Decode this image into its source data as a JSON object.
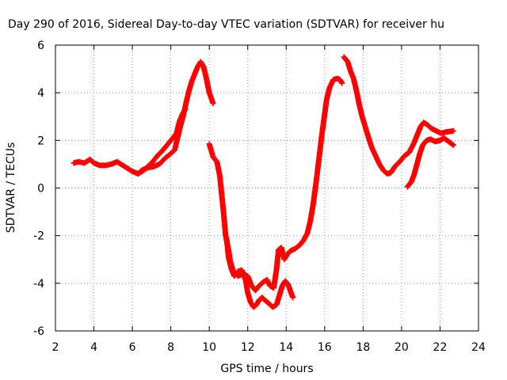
{
  "chart_data": {
    "type": "scatter",
    "title": "Day 290 of 2016, Sidereal Day-to-day VTEC variation (SDTVAR) for receiver hu",
    "xlabel": "GPS time / hours",
    "ylabel": "SDTVAR / TECUs",
    "xlim": [
      2,
      24
    ],
    "ylim": [
      -6,
      6
    ],
    "xticks": [
      "2",
      "4",
      "6",
      "8",
      "10",
      "12",
      "14",
      "16",
      "18",
      "20",
      "22",
      "24"
    ],
    "yticks": [
      "-6",
      "-4",
      "-2",
      "0",
      "2",
      "4",
      "6"
    ],
    "grid": true,
    "legend": "none",
    "marker": "plus",
    "color": "#ff0000",
    "series": [
      {
        "points": [
          [
            2.95,
            1.05
          ],
          [
            3.2,
            1.1
          ],
          [
            3.5,
            1.05
          ],
          [
            3.8,
            1.2
          ],
          [
            4.0,
            1.05
          ],
          [
            4.3,
            0.95
          ],
          [
            4.6,
            0.95
          ],
          [
            4.9,
            1.0
          ],
          [
            5.2,
            1.1
          ],
          [
            5.5,
            0.95
          ],
          [
            5.8,
            0.8
          ],
          [
            6.0,
            0.7
          ],
          [
            6.3,
            0.6
          ],
          [
            6.5,
            0.75
          ],
          [
            6.8,
            0.85
          ],
          [
            7.1,
            0.9
          ],
          [
            7.4,
            1.0
          ],
          [
            7.7,
            1.25
          ],
          [
            8.0,
            1.45
          ],
          [
            8.2,
            1.6
          ],
          [
            8.35,
            2.1
          ],
          [
            8.5,
            2.6
          ],
          [
            8.65,
            3.05
          ],
          [
            8.8,
            3.6
          ],
          [
            8.95,
            4.1
          ],
          [
            9.1,
            4.5
          ],
          [
            9.25,
            4.8
          ],
          [
            9.4,
            5.1
          ],
          [
            9.55,
            5.3
          ],
          [
            9.7,
            5.1
          ],
          [
            9.85,
            4.6
          ],
          [
            10.0,
            4.0
          ],
          [
            10.2,
            3.55
          ]
        ]
      },
      {
        "points": [
          [
            6.3,
            0.6
          ],
          [
            6.6,
            0.75
          ],
          [
            7.0,
            1.05
          ],
          [
            7.3,
            1.35
          ],
          [
            7.6,
            1.6
          ],
          [
            7.9,
            1.9
          ],
          [
            8.1,
            2.1
          ],
          [
            8.3,
            2.3
          ],
          [
            8.45,
            2.8
          ],
          [
            8.6,
            3.1
          ],
          [
            8.75,
            3.3
          ]
        ]
      },
      {
        "points": [
          [
            10.0,
            1.85
          ],
          [
            10.2,
            1.3
          ],
          [
            10.4,
            1.1
          ],
          [
            10.55,
            0.5
          ],
          [
            10.65,
            -0.3
          ],
          [
            10.75,
            -1.1
          ],
          [
            10.85,
            -2.0
          ],
          [
            11.0,
            -2.6
          ],
          [
            11.1,
            -3.1
          ],
          [
            11.25,
            -3.5
          ],
          [
            11.5,
            -3.7
          ],
          [
            11.75,
            -3.6
          ],
          [
            12.0,
            -3.7
          ],
          [
            12.2,
            -4.1
          ],
          [
            12.4,
            -4.3
          ],
          [
            12.6,
            -4.1
          ],
          [
            12.8,
            -3.95
          ],
          [
            13.0,
            -3.85
          ],
          [
            13.15,
            -4.1
          ],
          [
            13.35,
            -4.2
          ],
          [
            13.5,
            -3.4
          ],
          [
            13.6,
            -2.6
          ],
          [
            13.75,
            -2.5
          ],
          [
            13.9,
            -3.0
          ],
          [
            14.05,
            -2.8
          ],
          [
            14.2,
            -2.65
          ],
          [
            14.45,
            -2.55
          ],
          [
            14.7,
            -2.4
          ],
          [
            14.9,
            -2.2
          ],
          [
            15.1,
            -1.9
          ],
          [
            15.25,
            -1.4
          ],
          [
            15.4,
            -0.7
          ],
          [
            15.55,
            0.2
          ],
          [
            15.7,
            1.2
          ],
          [
            15.85,
            2.2
          ],
          [
            16.0,
            3.1
          ],
          [
            16.1,
            3.7
          ],
          [
            16.25,
            4.2
          ],
          [
            16.45,
            4.55
          ],
          [
            16.65,
            4.6
          ],
          [
            16.8,
            4.55
          ],
          [
            16.9,
            4.4
          ]
        ]
      },
      {
        "points": [
          [
            10.9,
            -2.1
          ],
          [
            11.0,
            -2.9
          ],
          [
            11.15,
            -3.4
          ],
          [
            11.3,
            -3.7
          ],
          [
            11.5,
            -3.5
          ],
          [
            11.7,
            -3.45
          ],
          [
            11.9,
            -3.9
          ],
          [
            12.0,
            -4.4
          ],
          [
            12.15,
            -4.8
          ],
          [
            12.3,
            -5.0
          ],
          [
            12.45,
            -4.9
          ],
          [
            12.6,
            -4.7
          ],
          [
            12.75,
            -4.6
          ],
          [
            12.95,
            -4.75
          ],
          [
            13.1,
            -4.85
          ],
          [
            13.3,
            -5.0
          ],
          [
            13.5,
            -4.9
          ],
          [
            13.65,
            -4.5
          ],
          [
            13.8,
            -4.1
          ],
          [
            13.95,
            -3.9
          ],
          [
            14.1,
            -4.05
          ],
          [
            14.25,
            -4.4
          ],
          [
            14.35,
            -4.6
          ]
        ]
      },
      {
        "points": [
          [
            17.0,
            5.5
          ],
          [
            17.2,
            5.3
          ],
          [
            17.35,
            4.9
          ],
          [
            17.5,
            4.6
          ],
          [
            17.65,
            4.1
          ],
          [
            17.8,
            3.5
          ],
          [
            17.95,
            3.0
          ],
          [
            18.1,
            2.6
          ],
          [
            18.25,
            2.2
          ],
          [
            18.45,
            1.7
          ],
          [
            18.65,
            1.35
          ],
          [
            18.85,
            1.0
          ],
          [
            19.05,
            0.75
          ],
          [
            19.25,
            0.6
          ],
          [
            19.45,
            0.65
          ],
          [
            19.65,
            0.9
          ],
          [
            19.9,
            1.1
          ],
          [
            20.15,
            1.35
          ],
          [
            20.4,
            1.5
          ],
          [
            20.65,
            1.9
          ],
          [
            20.85,
            2.3
          ],
          [
            21.0,
            2.6
          ],
          [
            21.15,
            2.75
          ],
          [
            21.35,
            2.65
          ],
          [
            21.55,
            2.5
          ],
          [
            21.8,
            2.4
          ],
          [
            22.05,
            2.3
          ],
          [
            22.3,
            2.35
          ],
          [
            22.7,
            2.4
          ]
        ]
      },
      {
        "points": [
          [
            20.3,
            0.05
          ],
          [
            20.5,
            0.25
          ],
          [
            20.65,
            0.55
          ],
          [
            20.8,
            1.0
          ],
          [
            20.95,
            1.45
          ],
          [
            21.1,
            1.8
          ],
          [
            21.3,
            2.0
          ],
          [
            21.5,
            2.05
          ],
          [
            21.75,
            1.95
          ],
          [
            22.0,
            2.0
          ],
          [
            22.2,
            2.1
          ],
          [
            22.45,
            1.95
          ],
          [
            22.7,
            1.8
          ]
        ]
      }
    ]
  }
}
